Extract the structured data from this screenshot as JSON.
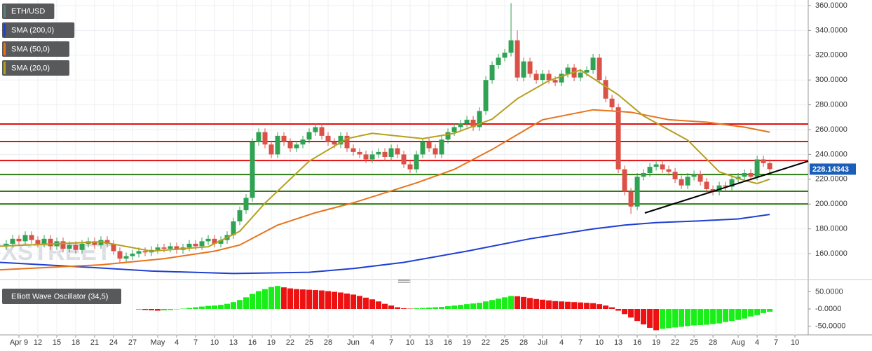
{
  "chart_data": [
    {
      "type": "candlestick",
      "watermark": "FXSTREET",
      "grid": true,
      "xlim": [
        6,
        134.1
      ],
      "ylim": [
        141.4,
        364.5
      ],
      "yticks": [
        {
          "value": 160,
          "label": "160.0000"
        },
        {
          "value": 180,
          "label": "180.0000"
        },
        {
          "value": 200,
          "label": "200.0000"
        },
        {
          "value": 220,
          "label": "220.0000"
        },
        {
          "value": 240,
          "label": "240.0000"
        },
        {
          "value": 260,
          "label": "260.0000"
        },
        {
          "value": 280,
          "label": "280.0000"
        },
        {
          "value": 300,
          "label": "300.0000"
        },
        {
          "value": 320,
          "label": "320.0000"
        },
        {
          "value": 340,
          "label": "340.0000"
        },
        {
          "value": 360,
          "label": "360.0000"
        }
      ],
      "xticks": [
        {
          "value": 9,
          "label": "Apr 9"
        },
        {
          "value": 12,
          "label": "12"
        },
        {
          "value": 15,
          "label": "15"
        },
        {
          "value": 18,
          "label": "18"
        },
        {
          "value": 21,
          "label": "21"
        },
        {
          "value": 24,
          "label": "24"
        },
        {
          "value": 27,
          "label": "27"
        },
        {
          "value": 31,
          "label": "May"
        },
        {
          "value": 34,
          "label": "4"
        },
        {
          "value": 37,
          "label": "7"
        },
        {
          "value": 40,
          "label": "10"
        },
        {
          "value": 43,
          "label": "13"
        },
        {
          "value": 46,
          "label": "16"
        },
        {
          "value": 49,
          "label": "19"
        },
        {
          "value": 52,
          "label": "22"
        },
        {
          "value": 55,
          "label": "25"
        },
        {
          "value": 58,
          "label": "28"
        },
        {
          "value": 62,
          "label": "Jun"
        },
        {
          "value": 65,
          "label": "4"
        },
        {
          "value": 68,
          "label": "7"
        },
        {
          "value": 71,
          "label": "10"
        },
        {
          "value": 74,
          "label": "13"
        },
        {
          "value": 77,
          "label": "16"
        },
        {
          "value": 80,
          "label": "19"
        },
        {
          "value": 83,
          "label": "22"
        },
        {
          "value": 86,
          "label": "25"
        },
        {
          "value": 89,
          "label": "28"
        },
        {
          "value": 92,
          "label": "Jul"
        },
        {
          "value": 95,
          "label": "4"
        },
        {
          "value": 98,
          "label": "7"
        },
        {
          "value": 101,
          "label": "10"
        },
        {
          "value": 104,
          "label": "13"
        },
        {
          "value": 107,
          "label": "16"
        },
        {
          "value": 110,
          "label": "19"
        },
        {
          "value": 113,
          "label": "22"
        },
        {
          "value": 116,
          "label": "25"
        },
        {
          "value": 119,
          "label": "28"
        },
        {
          "value": 123,
          "label": "Aug"
        },
        {
          "value": 126,
          "label": "4"
        },
        {
          "value": 129,
          "label": "7"
        },
        {
          "value": 132,
          "label": "10"
        }
      ],
      "x": [
        7,
        8,
        9,
        10,
        11,
        12,
        13,
        14,
        15,
        16,
        17,
        18,
        19,
        20,
        21,
        22,
        23,
        24,
        25,
        26,
        27,
        28,
        29,
        30,
        31,
        32,
        33,
        34,
        35,
        36,
        37,
        38,
        39,
        40,
        41,
        42,
        43,
        44,
        45,
        46,
        47,
        48,
        49,
        50,
        51,
        52,
        53,
        54,
        55,
        56,
        57,
        58,
        59,
        60,
        61,
        62,
        63,
        64,
        65,
        66,
        67,
        68,
        69,
        70,
        71,
        72,
        73,
        74,
        75,
        76,
        77,
        78,
        79,
        80,
        81,
        82,
        83,
        84,
        85,
        86,
        87,
        88,
        89,
        90,
        91,
        92,
        93,
        94,
        95,
        96,
        97,
        98,
        99,
        100,
        101,
        102,
        103,
        104,
        105,
        106,
        107,
        108,
        109,
        110,
        111,
        112,
        113,
        114,
        115,
        116,
        117,
        118,
        119,
        120,
        121,
        122,
        123,
        124,
        125,
        126,
        127,
        128
      ],
      "series": [
        {
          "name": "ETH/USD",
          "color": "#5b7f80",
          "up_color": "#2fa353",
          "down_color": "#db5148",
          "open": [
            166,
            168,
            172,
            170,
            175,
            171,
            168,
            172,
            166,
            170,
            164,
            167,
            163,
            168,
            170,
            167,
            171,
            168,
            162,
            156,
            158,
            160,
            162,
            161,
            163,
            165,
            164,
            166,
            163,
            165,
            168,
            166,
            170,
            172,
            168,
            171,
            175,
            186,
            195,
            205,
            250,
            258,
            248,
            240,
            255,
            250,
            245,
            248,
            252,
            258,
            262,
            255,
            250,
            248,
            255,
            245,
            242,
            240,
            236,
            240,
            242,
            238,
            245,
            240,
            232,
            228,
            240,
            250,
            245,
            240,
            252,
            258,
            262,
            265,
            268,
            262,
            275,
            300,
            312,
            318,
            322,
            332,
            302,
            315,
            305,
            300,
            305,
            300,
            298,
            305,
            310,
            302,
            306,
            308,
            318,
            300,
            285,
            278,
            228,
            210,
            198,
            222,
            225,
            230,
            232,
            228,
            226,
            220,
            215,
            222,
            224,
            218,
            212,
            210,
            215,
            214,
            220,
            222,
            225,
            222,
            236,
            233
          ],
          "high": [
            171,
            175,
            175,
            178,
            178,
            174,
            175,
            175,
            173,
            173,
            170,
            170,
            171,
            173,
            173,
            174,
            174,
            171,
            165,
            161,
            163,
            165,
            165,
            166,
            168,
            168,
            169,
            169,
            168,
            171,
            171,
            173,
            175,
            175,
            174,
            178,
            189,
            198,
            208,
            253,
            261,
            261,
            251,
            258,
            258,
            253,
            251,
            255,
            261,
            265,
            265,
            258,
            253,
            258,
            258,
            248,
            245,
            243,
            243,
            245,
            245,
            248,
            248,
            243,
            235,
            243,
            253,
            253,
            248,
            255,
            261,
            265,
            268,
            271,
            271,
            278,
            303,
            315,
            321,
            325,
            362,
            340,
            318,
            318,
            308,
            308,
            308,
            303,
            308,
            313,
            313,
            309,
            311,
            321,
            321,
            303,
            288,
            281,
            231,
            213,
            225,
            228,
            233,
            235,
            235,
            231,
            229,
            223,
            225,
            227,
            227,
            221,
            215,
            218,
            218,
            223,
            225,
            228,
            228,
            239,
            239,
            236
          ],
          "low": [
            163,
            165,
            167,
            167,
            168,
            165,
            165,
            163,
            163,
            161,
            161,
            160,
            160,
            165,
            164,
            164,
            165,
            159,
            153,
            153,
            155,
            157,
            158,
            158,
            160,
            161,
            161,
            160,
            160,
            162,
            163,
            163,
            167,
            165,
            165,
            168,
            172,
            183,
            192,
            202,
            247,
            245,
            237,
            237,
            247,
            242,
            242,
            245,
            249,
            255,
            252,
            247,
            245,
            245,
            242,
            239,
            237,
            233,
            233,
            237,
            235,
            235,
            237,
            229,
            225,
            225,
            237,
            242,
            237,
            237,
            249,
            255,
            259,
            262,
            259,
            259,
            272,
            297,
            309,
            315,
            319,
            299,
            299,
            302,
            297,
            297,
            297,
            295,
            295,
            302,
            299,
            299,
            303,
            305,
            297,
            282,
            275,
            225,
            207,
            192,
            195,
            219,
            222,
            227,
            225,
            223,
            217,
            212,
            212,
            219,
            215,
            209,
            207,
            207,
            211,
            211,
            217,
            219,
            219,
            219,
            230,
            225
          ],
          "close": [
            168,
            172,
            170,
            175,
            171,
            168,
            172,
            166,
            170,
            164,
            167,
            163,
            168,
            170,
            167,
            171,
            168,
            162,
            156,
            158,
            160,
            162,
            161,
            163,
            165,
            164,
            166,
            163,
            165,
            168,
            166,
            170,
            172,
            168,
            171,
            175,
            186,
            195,
            205,
            250,
            258,
            248,
            240,
            255,
            250,
            245,
            248,
            252,
            258,
            262,
            255,
            250,
            248,
            255,
            245,
            242,
            240,
            236,
            240,
            242,
            238,
            245,
            240,
            232,
            228,
            240,
            250,
            245,
            240,
            252,
            258,
            262,
            265,
            268,
            262,
            275,
            300,
            312,
            318,
            322,
            332,
            302,
            315,
            305,
            300,
            305,
            300,
            298,
            305,
            310,
            302,
            306,
            308,
            318,
            300,
            285,
            278,
            228,
            210,
            198,
            222,
            225,
            230,
            232,
            228,
            226,
            220,
            215,
            222,
            224,
            218,
            212,
            210,
            215,
            214,
            220,
            222,
            225,
            222,
            236,
            233,
            228.14
          ]
        },
        {
          "name": "SMA (200,0)",
          "type": "line",
          "color": "#1f3fd1",
          "x": [
            6,
            20,
            30,
            43,
            55,
            62,
            70,
            80,
            90,
            100,
            105,
            110,
            117,
            123,
            128
          ],
          "values": [
            153,
            149,
            146,
            144,
            145,
            148,
            153,
            162,
            172,
            180,
            183,
            185,
            186.5,
            188,
            191.6
          ]
        },
        {
          "name": "SMA (50,0)",
          "type": "line",
          "color": "#e8731c",
          "x": [
            6,
            22,
            32,
            40,
            44,
            50,
            56,
            62,
            72,
            78,
            84,
            92,
            100,
            106,
            112,
            118,
            124,
            128
          ],
          "values": [
            147,
            151,
            156,
            162,
            167,
            183,
            193,
            201,
            217,
            228,
            244,
            268,
            276,
            274,
            268,
            266,
            262,
            258
          ]
        },
        {
          "name": "SMA (20,0)",
          "type": "line",
          "color": "#b5a01e",
          "x": [
            6,
            15,
            22,
            30,
            39,
            44,
            48,
            55,
            61,
            65,
            73,
            78,
            84,
            88,
            93,
            98,
            104,
            108,
            115,
            120,
            124,
            126,
            128
          ],
          "values": [
            166,
            168,
            169.6,
            162,
            165.6,
            178,
            200.7,
            234.6,
            252.7,
            257,
            252.7,
            257,
            268.5,
            285,
            299.5,
            308,
            288,
            271,
            251.5,
            226,
            219,
            216.5,
            220
          ]
        }
      ],
      "levels": [
        {
          "value": 264.5,
          "color": "#e01010"
        },
        {
          "value": 250.4,
          "color": "#e01010"
        },
        {
          "value": 235.1,
          "color": "#e01010"
        },
        {
          "value": 223.8,
          "color": "#2f7d12"
        },
        {
          "value": 210.3,
          "color": "#2f7d12"
        },
        {
          "value": 200.1,
          "color": "#2f7d12"
        }
      ],
      "trendline": {
        "color": "#000000",
        "x": [
          108.2,
          134.1
        ],
        "values": [
          192.8,
          234.6
        ]
      },
      "last_price": {
        "value": 228.14343,
        "label": "228.14343",
        "color": "#1c5fb8"
      }
    },
    {
      "type": "bar",
      "title": "Elliott Wave Oscillator (34,5)",
      "up_color": "#19ee19",
      "down_color": "#ee1111",
      "ylim": [
        -73.5,
        73.5
      ],
      "yticks": [
        {
          "value": 50,
          "label": "50.0000"
        },
        {
          "value": 0,
          "label": "-0.0000"
        },
        {
          "value": -50,
          "label": "-50.0000"
        }
      ],
      "values": [
        null,
        null,
        null,
        null,
        null,
        null,
        null,
        null,
        null,
        null,
        null,
        null,
        null,
        null,
        null,
        null,
        null,
        null,
        null,
        null,
        null,
        -2,
        -3,
        -4,
        -5,
        -4,
        -3,
        -1,
        1,
        3,
        5,
        7,
        9,
        10,
        12,
        15,
        20,
        26,
        34,
        44,
        52,
        58,
        64,
        67,
        63,
        60,
        58,
        57,
        56,
        55,
        54,
        52,
        50,
        48,
        45,
        42,
        38,
        33,
        28,
        22,
        15,
        10,
        5,
        2,
        1,
        2,
        3,
        4,
        5,
        6,
        8,
        10,
        12,
        14,
        16,
        18,
        22,
        26,
        30,
        34,
        38,
        37,
        35,
        32,
        29,
        27,
        25,
        23,
        22,
        21,
        20,
        19,
        18,
        17,
        14,
        10,
        5,
        -5,
        -15,
        -25,
        -35,
        -45,
        -55,
        -62,
        -58,
        -56,
        -54,
        -52,
        -50,
        -48,
        -47,
        -46,
        -44,
        -42,
        -38,
        -35,
        -32,
        -28,
        -22,
        -18,
        -12,
        -8
      ]
    }
  ]
}
